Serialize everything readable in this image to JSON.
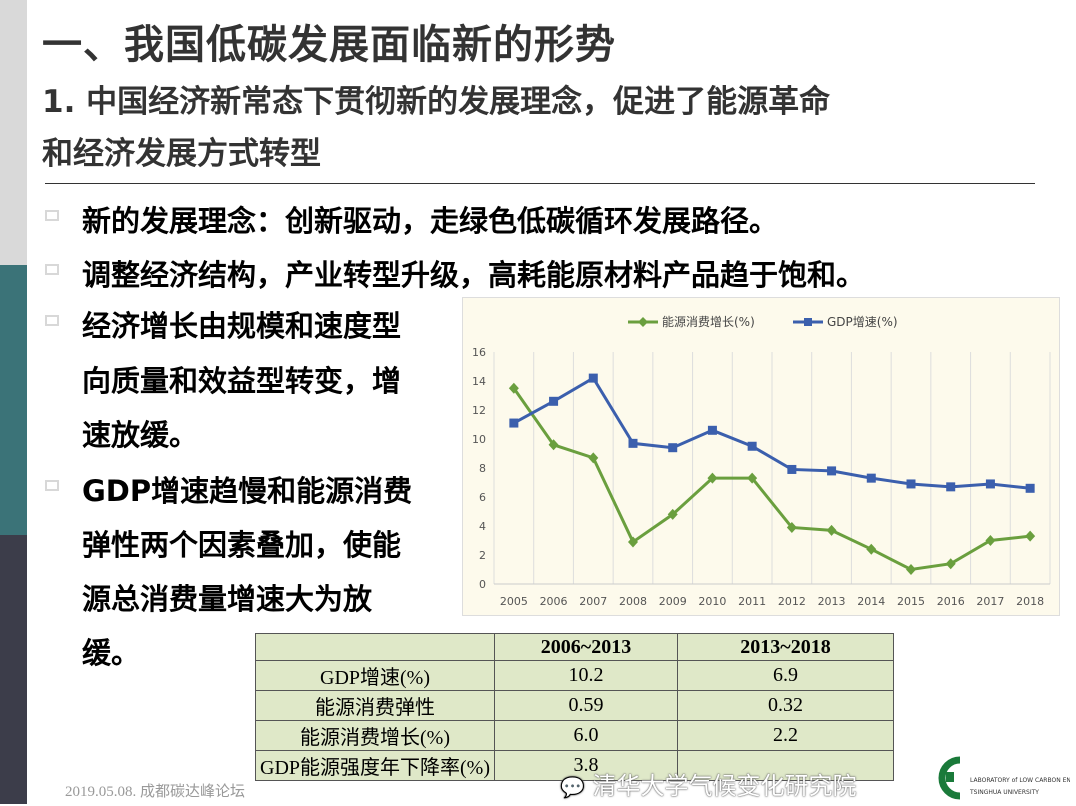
{
  "title": "一、我国低碳发展面临新的形势",
  "subtitle_lines": [
    "1. 中国经济新常态下贯彻新的发展理念，促进了能源革命",
    "和经济发展方式转型"
  ],
  "bullets": [
    {
      "lines": [
        "新的发展理念：创新驱动，走绿色低碳循环发展路径。"
      ]
    },
    {
      "lines": [
        "调整经济结构，产业转型升级，高耗能原材料产品趋于饱和。"
      ]
    },
    {
      "lines": [
        "经济增长由规模和速度型",
        "向质量和效益型转变，增",
        "速放缓。"
      ]
    },
    {
      "lines": [
        "GDP增速趋慢和能源消费",
        "弹性两个因素叠加，使能",
        "源总消费量增速大为放",
        "缓。"
      ]
    }
  ],
  "chart_data": {
    "type": "line",
    "title": "",
    "categories": [
      "2005",
      "2006",
      "2007",
      "2008",
      "2009",
      "2010",
      "2011",
      "2012",
      "2013",
      "2014",
      "2015",
      "2016",
      "2017",
      "2018"
    ],
    "series": [
      {
        "name": "能源消费增长(%)",
        "color": "#6a9f3e",
        "marker": "diamond",
        "values": [
          13.5,
          9.6,
          8.7,
          2.9,
          4.8,
          7.3,
          7.3,
          3.9,
          3.7,
          2.4,
          1.0,
          1.4,
          3.0,
          3.3
        ]
      },
      {
        "name": "GDP增速(%)",
        "color": "#3b5fad",
        "marker": "square",
        "values": [
          11.1,
          12.6,
          14.2,
          9.7,
          9.4,
          10.6,
          9.5,
          7.9,
          7.8,
          7.3,
          6.9,
          6.7,
          6.9,
          6.6
        ]
      }
    ],
    "yticks": [
      0,
      2,
      4,
      6,
      8,
      10,
      12,
      14,
      16
    ],
    "ylim": [
      0,
      16
    ],
    "legend": "top",
    "xlabel": "",
    "ylabel": ""
  },
  "table": {
    "headers": [
      "",
      "2006~2013",
      "2013~2018"
    ],
    "rows": [
      [
        "GDP增速(%)",
        "10.2",
        "6.9"
      ],
      [
        "能源消费弹性",
        "0.59",
        "0.32"
      ],
      [
        "能源消费增长(%)",
        "6.0",
        "2.2"
      ],
      [
        "GDP能源强度年下降率(%)",
        "3.8",
        ""
      ]
    ]
  },
  "footer": "2019.05.08. 成都碳达峰论坛",
  "watermark": "清华大学气候变化研究院",
  "logo_text": "LABORATORY of LOW CARBON ENERGY TSINGHUA UNIVERSITY 实验室",
  "colors": {
    "sidebar_top": "#d9d9d9",
    "sidebar_mid": "#3b7378",
    "sidebar_bottom": "#3c3d4a"
  }
}
